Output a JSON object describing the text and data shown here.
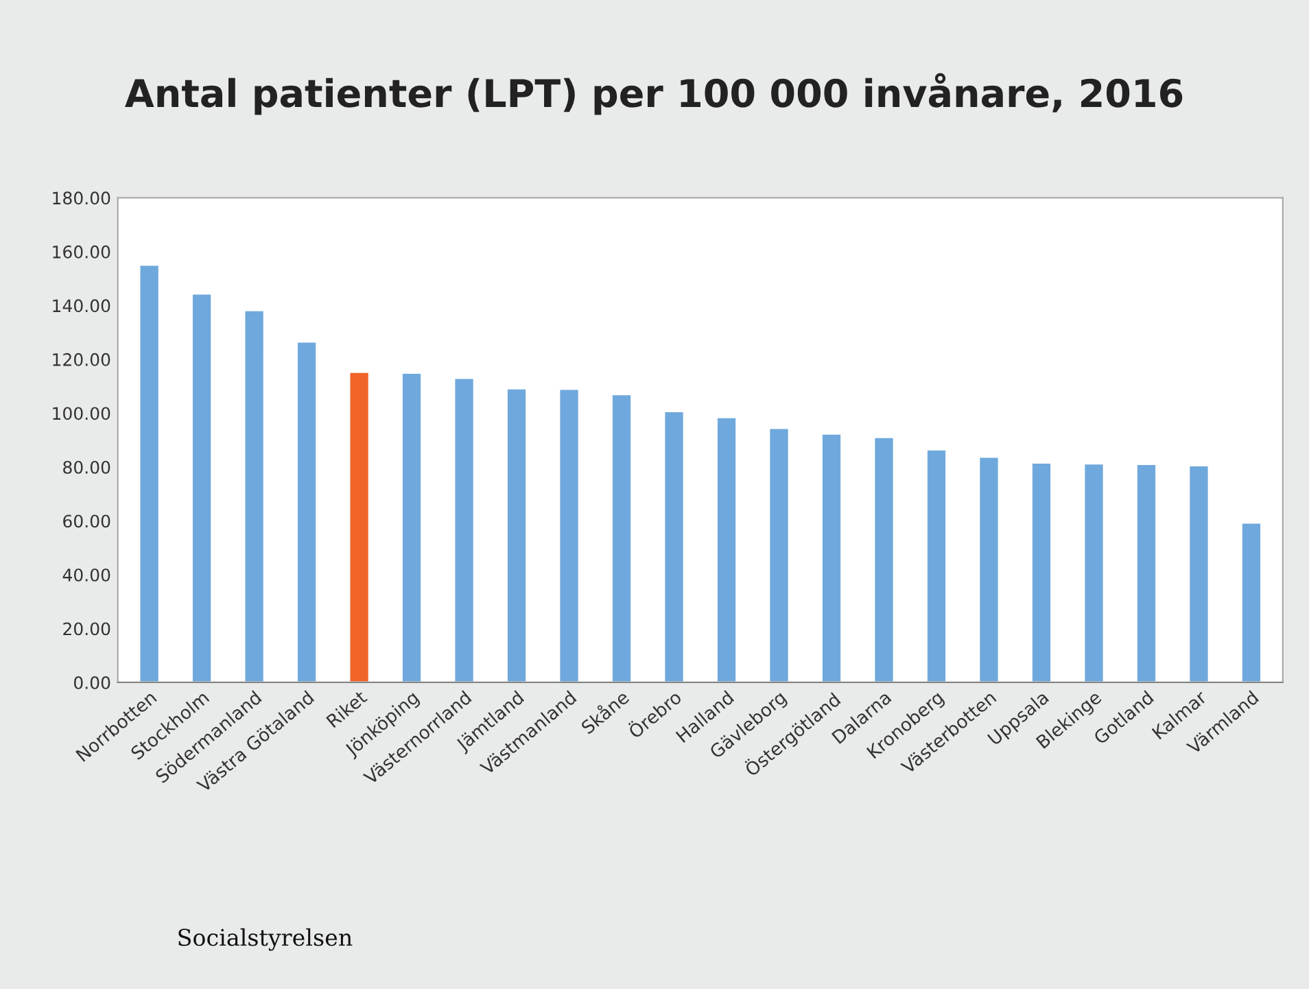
{
  "chart_data": {
    "type": "bar",
    "title": "Antal patienter (LPT) per 100 000 invånare, 2016",
    "categories": [
      "Norrbotten",
      "Stockholm",
      "Södermanland",
      "Västra Götaland",
      "Riket",
      "Jönköping",
      "Västernorrland",
      "Jämtland",
      "Västmanland",
      "Skåne",
      "Örebro",
      "Halland",
      "Gävleborg",
      "Östergötland",
      "Dalarna",
      "Kronoberg",
      "Västerbotten",
      "Uppsala",
      "Blekinge",
      "Gotland",
      "Kalmar",
      "Värmland"
    ],
    "values": [
      155.1,
      144.4,
      138.2,
      126.6,
      115.3,
      115.0,
      113.1,
      109.2,
      109.0,
      107.0,
      100.7,
      98.5,
      94.5,
      92.4,
      91.1,
      86.5,
      83.8,
      81.6,
      81.3,
      81.1,
      80.6,
      59.3
    ],
    "colors": [
      "#6fa8dc",
      "#6fa8dc",
      "#6fa8dc",
      "#6fa8dc",
      "#f0642a",
      "#6fa8dc",
      "#6fa8dc",
      "#6fa8dc",
      "#6fa8dc",
      "#6fa8dc",
      "#6fa8dc",
      "#6fa8dc",
      "#6fa8dc",
      "#6fa8dc",
      "#6fa8dc",
      "#6fa8dc",
      "#6fa8dc",
      "#6fa8dc",
      "#6fa8dc",
      "#6fa8dc",
      "#6fa8dc",
      "#6fa8dc"
    ],
    "ylim": [
      0,
      180
    ],
    "yticks": [
      {
        "value": 0,
        "label": "0.00"
      },
      {
        "value": 20,
        "label": "20.00"
      },
      {
        "value": 40,
        "label": "40.00"
      },
      {
        "value": 60,
        "label": "60.00"
      },
      {
        "value": 80,
        "label": "80.00"
      },
      {
        "value": 100,
        "label": "100.00"
      },
      {
        "value": 120,
        "label": "120.00"
      },
      {
        "value": 140,
        "label": "140.00"
      },
      {
        "value": 160,
        "label": "160.00"
      },
      {
        "value": 180,
        "label": "180.00"
      }
    ],
    "grid": false,
    "annotations": [
      "Socialstyrelsen"
    ]
  }
}
